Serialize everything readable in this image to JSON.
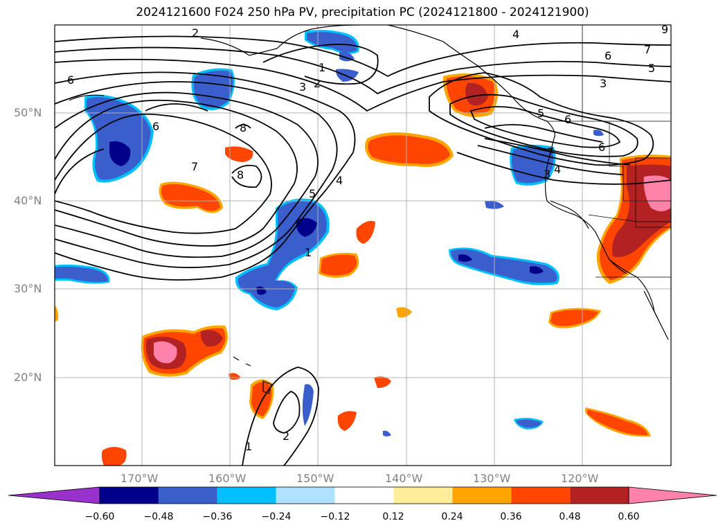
{
  "title": "2024121600 F024 250 hPa PV, precipitation PC (2024121800 - 2024121900)",
  "lat_labels": [
    "50°N",
    "40°N",
    "30°N",
    "20°N"
  ],
  "lon_labels": [
    "170°W",
    "160°W",
    "150°W",
    "140°W",
    "130°W",
    "120°W"
  ],
  "colorbar": {
    "colors": [
      "#9932cc",
      "#00008b",
      "#3a5fcd",
      "#00bfff",
      "#b0e2ff",
      "#ffffff",
      "#ffee99",
      "#ffa500",
      "#ff4500",
      "#b22222",
      "#ff82ab"
    ],
    "ticks": [
      "−0.60",
      "−0.48",
      "−0.36",
      "−0.24",
      "−0.12",
      "0.12",
      "0.24",
      "0.36",
      "0.48",
      "0.60"
    ]
  },
  "contour_labels": [
    "2",
    "4",
    "7",
    "6",
    "5",
    "3",
    "1",
    "2",
    "3",
    "6",
    "6",
    "7",
    "8",
    "8",
    "4",
    "5",
    "1",
    "1",
    "2",
    "6",
    "5",
    "4",
    "3",
    "7",
    "6",
    "9"
  ],
  "colors": {
    "land_outline": "#000000",
    "grid": "#b0b0b0"
  }
}
